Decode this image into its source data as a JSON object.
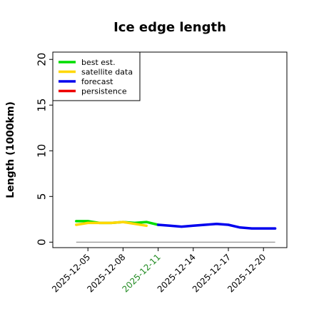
{
  "chart_data": {
    "type": "line",
    "title": "Ice edge length",
    "xlabel": "",
    "ylabel": "Length (1000km)",
    "ylim": [
      -0.6,
      20.8
    ],
    "xlim": [
      "2025-12-02",
      "2025-12-22"
    ],
    "yticks": [
      "0",
      "5",
      "10",
      "15",
      "20"
    ],
    "xticks": [
      {
        "label": "2025-12-05",
        "highlight": false
      },
      {
        "label": "2025-12-08",
        "highlight": false
      },
      {
        "label": "2025-12-11",
        "highlight": true
      },
      {
        "label": "2025-12-14",
        "highlight": false
      },
      {
        "label": "2025-12-17",
        "highlight": false
      },
      {
        "label": "2025-12-20",
        "highlight": false
      }
    ],
    "highlight_color": "#228b22",
    "legend_position": "upper-left",
    "grid": false,
    "series": [
      {
        "name": "best est.",
        "color": "#00dd00",
        "x": [
          "2025-12-04",
          "2025-12-05",
          "2025-12-06",
          "2025-12-07",
          "2025-12-08",
          "2025-12-09",
          "2025-12-10",
          "2025-12-11"
        ],
        "values": [
          2.3,
          2.3,
          2.1,
          2.1,
          2.2,
          2.1,
          2.2,
          1.9
        ]
      },
      {
        "name": "satellite data",
        "color": "#ffd700",
        "x": [
          "2025-12-04",
          "2025-12-05",
          "2025-12-06",
          "2025-12-07",
          "2025-12-08",
          "2025-12-09",
          "2025-12-10"
        ],
        "values": [
          1.9,
          2.1,
          2.1,
          2.1,
          2.2,
          2.0,
          1.8
        ]
      },
      {
        "name": "forecast",
        "color": "#0000ee",
        "x": [
          "2025-12-11",
          "2025-12-12",
          "2025-12-13",
          "2025-12-14",
          "2025-12-15",
          "2025-12-16",
          "2025-12-17",
          "2025-12-18",
          "2025-12-19",
          "2025-12-20",
          "2025-12-21"
        ],
        "values": [
          1.9,
          1.8,
          1.7,
          1.8,
          1.9,
          2.0,
          1.9,
          1.6,
          1.5,
          1.5,
          1.5
        ]
      },
      {
        "name": "persistence",
        "color": "#ee0000",
        "x": [],
        "values": []
      }
    ],
    "reference_line": {
      "y": 0,
      "from": "2025-12-04",
      "to": "2025-12-21",
      "color": "#888888"
    }
  }
}
